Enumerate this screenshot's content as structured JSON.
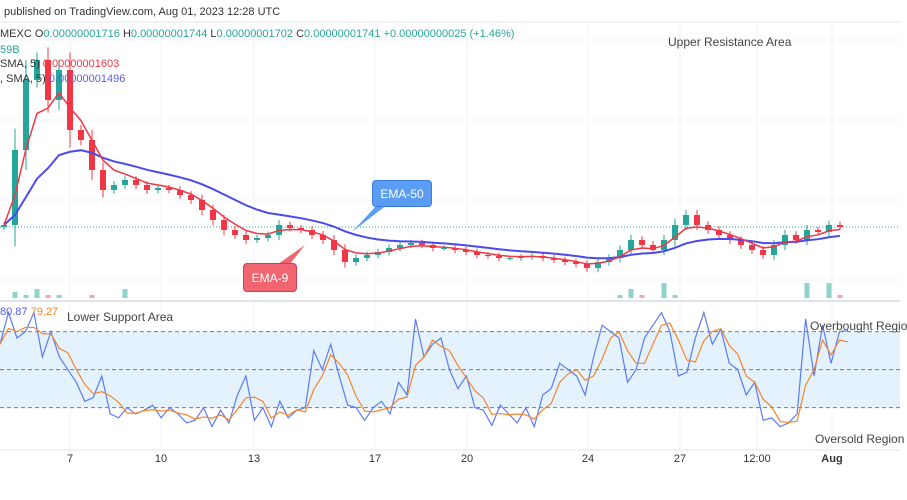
{
  "header": {
    "published": "published on TradingView.com, Aug 01, 2023 12:28 UTC"
  },
  "legend": {
    "symbol": "MEXC",
    "open_label": "O",
    "open": "0.00000001716",
    "high_label": "H",
    "high": "0.00000001744",
    "low_label": "L",
    "low": "0.00000001702",
    "close_label": "C",
    "close": "0.00000001741",
    "change": "+0.00000000025 (+1.46%)",
    "volume": "59B",
    "ma1_label": "SMA, 5)",
    "ma1_value": "0.00000001603",
    "ma2_label": ", SMA, 5)",
    "ma2_value": "0.00000001496"
  },
  "annotations": {
    "upper": "Upper Resistance Area",
    "lower": "Lower Support Area",
    "overbought": "Overbought Regio",
    "oversold": "Oversold Region",
    "ema50": "EMA-50",
    "ema9": "EMA-9"
  },
  "colors": {
    "up": "#26a69a",
    "down": "#f23645",
    "ema9": "#f23645",
    "ema50": "#4a4af0",
    "stoch_k": "#5b7cf5",
    "stoch_d": "#f5862a",
    "band": "#e3f2fd"
  },
  "chart_data": [
    {
      "type": "candlestick",
      "price_unit": "1e-8",
      "ylim": [
        624,
        4602
      ],
      "closes": [
        1772,
        2919,
        3990,
        4296,
        3684,
        4143,
        3225,
        3072,
        2613,
        2307,
        2384,
        2460,
        2384,
        2307,
        2338,
        2307,
        2231,
        2154,
        2001,
        1848,
        1695,
        1619,
        1542,
        1573,
        1619,
        1772,
        1726,
        1695,
        1619,
        1542,
        1389,
        1205,
        1267,
        1313,
        1359,
        1420,
        1466,
        1496,
        1466,
        1420,
        1420,
        1389,
        1359,
        1313,
        1297,
        1267,
        1267,
        1282,
        1297,
        1267,
        1236,
        1205,
        1175,
        1114,
        1205,
        1267,
        1389,
        1542,
        1466,
        1389,
        1542,
        1772,
        1925,
        1772,
        1695,
        1619,
        1542,
        1466,
        1389,
        1313,
        1466,
        1619,
        1542,
        1695,
        1665,
        1772,
        1741
      ],
      "volume_levels": [
        0,
        2,
        1,
        3,
        1,
        1,
        0,
        0,
        1,
        0,
        0,
        3,
        0,
        0,
        0,
        0,
        0,
        0,
        0,
        0,
        0,
        0,
        0,
        0,
        0,
        0,
        0,
        0,
        0,
        0,
        0,
        0,
        0,
        0,
        0,
        0,
        0,
        0,
        0,
        0,
        0,
        0,
        0,
        0,
        0,
        0,
        0,
        0,
        0,
        0,
        0,
        0,
        0,
        0,
        0,
        0,
        1,
        3,
        1,
        0,
        5,
        1,
        0,
        0,
        0,
        0,
        0,
        0,
        0,
        0,
        0,
        0,
        0,
        5,
        0,
        5,
        1
      ],
      "current_price": 1741,
      "ema9_last": 1603,
      "ema50_last": 1496,
      "x_ticks": [
        "7",
        "10",
        "13",
        "17",
        "20",
        "24",
        "27",
        "12:00",
        "Aug"
      ]
    },
    {
      "type": "line",
      "name": "stochastic",
      "ylim": [
        0,
        100
      ],
      "levels": [
        80,
        50,
        20
      ],
      "k_last": "80.87",
      "d_last": "79.27",
      "k": [
        70,
        95,
        75,
        80,
        95,
        60,
        80,
        60,
        50,
        40,
        25,
        28,
        45,
        15,
        12,
        20,
        15,
        18,
        22,
        12,
        20,
        15,
        8,
        10,
        20,
        5,
        18,
        8,
        30,
        45,
        10,
        20,
        5,
        25,
        12,
        18,
        20,
        65,
        50,
        70,
        45,
        22,
        20,
        10,
        20,
        25,
        15,
        40,
        30,
        90,
        60,
        70,
        75,
        50,
        35,
        45,
        20,
        18,
        6,
        22,
        15,
        8,
        20,
        5,
        30,
        35,
        55,
        50,
        45,
        30,
        60,
        85,
        80,
        75,
        40,
        50,
        75,
        85,
        95,
        80,
        45,
        48,
        75,
        95,
        70,
        82,
        55,
        50,
        30,
        40,
        10,
        12,
        5,
        8,
        15,
        90,
        45,
        85,
        55,
        80,
        80.87
      ]
    }
  ]
}
